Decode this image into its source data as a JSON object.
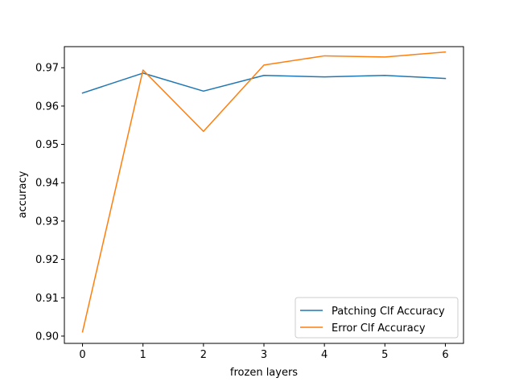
{
  "chart_data": {
    "type": "line",
    "title": "",
    "xlabel": "frozen layers",
    "ylabel": "accuracy",
    "x": [
      0,
      1,
      2,
      3,
      4,
      5,
      6
    ],
    "xlim": [
      -0.3,
      6.3
    ],
    "ylim": [
      0.8981,
      0.9755
    ],
    "xticks": [
      "0",
      "1",
      "2",
      "3",
      "4",
      "5",
      "6"
    ],
    "yticks": [
      "0.90",
      "0.91",
      "0.92",
      "0.93",
      "0.94",
      "0.95",
      "0.96",
      "0.97"
    ],
    "grid": false,
    "legend_position": "lower-right",
    "series": [
      {
        "name": "Patching Clf Accuracy",
        "color": "#1f77b4",
        "values": [
          0.9634,
          0.9686,
          0.9639,
          0.968,
          0.9676,
          0.968,
          0.9672
        ]
      },
      {
        "name": "Error Clf Accuracy",
        "color": "#ff7f0e",
        "values": [
          0.9011,
          0.9694,
          0.9534,
          0.9707,
          0.9731,
          0.9728,
          0.9741
        ]
      }
    ]
  }
}
